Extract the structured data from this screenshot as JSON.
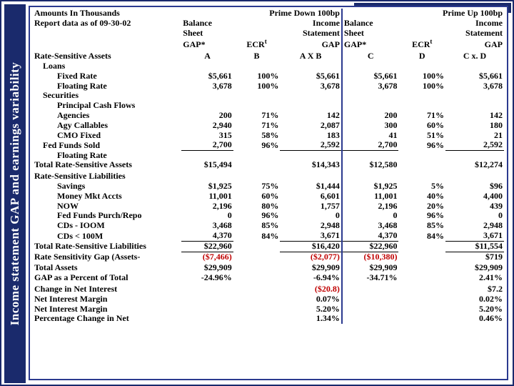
{
  "sidebar": {
    "title": "Income statement GAP and earnings variability"
  },
  "header": {
    "title": "Amounts In Thousands",
    "asof": "Report data as of 09-30-02",
    "scenario_down": "Prime Down 100bp",
    "scenario_up": "Prime Up 100bp",
    "col_bs": "Balance\nSheet\nGAP*",
    "col_ecr": "ECRᵗ",
    "col_is": "Income\nStatement\nGAP",
    "A": "A",
    "B": "B",
    "AXB": "A X B",
    "C": "C",
    "D": "D",
    "CXD": "C x. D"
  },
  "sections": {
    "rsa": "Rate-Sensitive Assets",
    "loans": "Loans",
    "securities": "Securities",
    "ffs": "Fed Funds Sold",
    "total_rsa": "Total Rate-Sensitive Assets",
    "rsl": "Rate-Sensitive Liabilities",
    "total_rsl": "Total Rate-Sensitive Liabilities",
    "rsg": "Rate Sensitivity Gap (Assets-",
    "ta": "Total Assets",
    "gap_pct": "GAP as a Percent of Total",
    "dni": "Change in Net Interest",
    "nim": "Net Interest Margin",
    "pct_dni": "Percentage Change in Net"
  },
  "rows": {
    "fixed_rate": {
      "label": "Fixed Rate",
      "A": "$5,661",
      "B": "100%",
      "AXB": "$5,661",
      "C": "$5,661",
      "D": "100%",
      "CXD": "$5,661"
    },
    "floating_rate": {
      "label": "Floating Rate",
      "A": "3,678",
      "B": "100%",
      "AXB": "3,678",
      "C": "3,678",
      "D": "100%",
      "CXD": "3,678"
    },
    "pcf": {
      "label": "Principal Cash Flows"
    },
    "agencies": {
      "label": "Agencies",
      "A": "200",
      "B": "71%",
      "AXB": "142",
      "C": "200",
      "D": "71%",
      "CXD": "142"
    },
    "agy_call": {
      "label": "Agy Callables",
      "A": "2,940",
      "B": "71%",
      "AXB": "2,087",
      "C": "300",
      "D": "60%",
      "CXD": "180"
    },
    "cmo": {
      "label": "CMO Fixed",
      "A": "315",
      "B": "58%",
      "AXB": "183",
      "C": "41",
      "D": "51%",
      "CXD": "21"
    },
    "ffs_sold": {
      "label": "Fed Funds Sold",
      "A": "2,700",
      "B": "96%",
      "AXB": "2,592",
      "C": "2,700",
      "D": "96%",
      "CXD": "2,592"
    },
    "ffs_float": {
      "label": "Floating Rate"
    },
    "total_rsa": {
      "A": "$15,494",
      "AXB": "$14,343",
      "C": "$12,580",
      "CXD": "$12,274"
    },
    "savings": {
      "label": "Savings",
      "A": "$1,925",
      "B": "75%",
      "AXB": "$1,444",
      "C": "$1,925",
      "D": "5%",
      "CXD": "$96"
    },
    "mma": {
      "label": "Money Mkt Accts",
      "A": "11,001",
      "B": "60%",
      "AXB": "6,601",
      "C": "11,001",
      "D": "40%",
      "CXD": "4,400"
    },
    "now": {
      "label": "NOW",
      "A": "2,196",
      "B": "80%",
      "AXB": "1,757",
      "C": "2,196",
      "D": "20%",
      "CXD": "439"
    },
    "fed_repo": {
      "label": "Fed Funds Purch/Repo",
      "A": "0",
      "B": "96%",
      "AXB": "0",
      "C": "0",
      "D": "96%",
      "CXD": "0"
    },
    "cds_big": {
      "label": "CDs - IOOM",
      "A": "3,468",
      "B": "85%",
      "AXB": "2,948",
      "C": "3,468",
      "D": "85%",
      "CXD": "2,948"
    },
    "cds_small": {
      "label": "CDs < 100M",
      "A": "4,370",
      "B": "84%",
      "AXB": "3,671",
      "C": "4,370",
      "D": "84%",
      "CXD": "3,671"
    },
    "total_rsl": {
      "A": "$22,960",
      "AXB": "$16,420",
      "C": "$22,960",
      "CXD": "$11,554"
    },
    "rsg": {
      "A": "($7,466)",
      "AXB": "($2,077)",
      "C": "($10,380)",
      "CXD": "$719"
    },
    "ta": {
      "A": "$29,909",
      "AXB": "$29,909",
      "C": "$29,909",
      "CXD": "$29,909"
    },
    "gap_pct": {
      "A": "-24.96%",
      "AXB": "-6.94%",
      "C": "-34.71%",
      "CXD": "2.41%"
    },
    "dni": {
      "AXB": "($20.8)",
      "CXD": "$7.2"
    },
    "nim": {
      "AXB": "0.07%",
      "CXD": "0.02%"
    },
    "nim2": {
      "AXB": "5.20%",
      "CXD": "5.20%"
    },
    "pct_dni": {
      "AXB": "1.34%",
      "CXD": "0.46%"
    }
  },
  "colors": {
    "frame": "#1a2a6c",
    "text": "#000000",
    "negative": "#c00000",
    "background": "#ffffff"
  }
}
